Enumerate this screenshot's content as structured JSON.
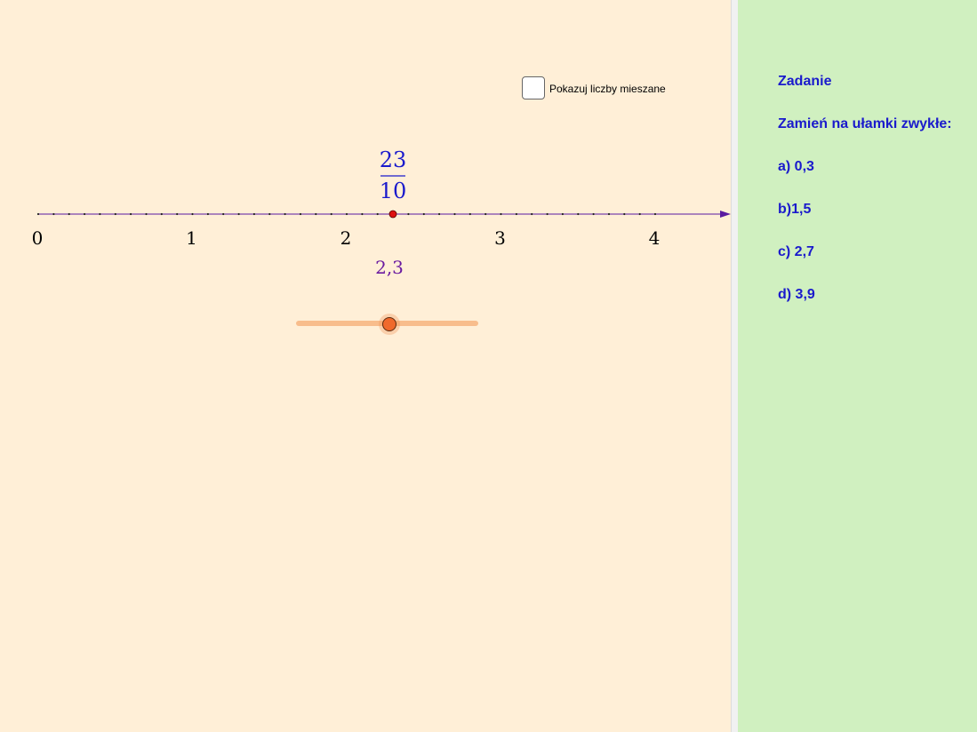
{
  "checkbox": {
    "label": "Pokazuj liczby mieszane",
    "checked": false
  },
  "number_line": {
    "min": 0,
    "max": 4.5,
    "step": 0.1,
    "tick_labels": [
      "0",
      "1",
      "2",
      "3",
      "4"
    ],
    "point_value": 2.3,
    "fraction": {
      "numerator": "23",
      "denominator": "10"
    },
    "decimal_label": "2,3"
  },
  "slider": {
    "min": 0,
    "max": 4.5,
    "value": 2.3
  },
  "sidebar": {
    "title": "Zadanie",
    "instruction": "Zamień na ułamki zwykłe:",
    "tasks": [
      "a) 0,3",
      "b)1,5",
      "c) 2,7",
      "d) 3,9"
    ]
  },
  "colors": {
    "graphics_bg": "#ffefd7",
    "sidebar_bg": "#d0f0c0",
    "sidebar_text": "#1a1acc",
    "axis": "#5a1aa0",
    "fraction": "#1a1acc",
    "decimal": "#6a1aa0",
    "point": "#dd1111"
  }
}
